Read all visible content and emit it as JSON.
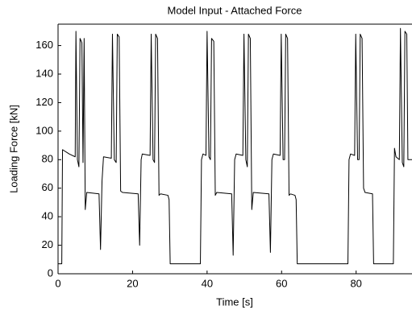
{
  "chart_data": {
    "type": "line",
    "title": "Model Input - Attached Force",
    "x_label": "Time [s]",
    "y_label": "Loading Force [kN]",
    "x": [
      0,
      1,
      1.2,
      3,
      4.6,
      4.8,
      5.2,
      5.6,
      5.9,
      6.4,
      6.7,
      7,
      7.3,
      7.7,
      11,
      11.4,
      11.8,
      12.2,
      14.3,
      14.6,
      15.1,
      15.6,
      15.9,
      16.4,
      16.8,
      17.3,
      21.5,
      21.9,
      22.3,
      22.6,
      24.7,
      25,
      25.5,
      25.9,
      26.2,
      26.7,
      27.1,
      27.5,
      29.5,
      29.8,
      30.1,
      38.2,
      38.5,
      38.9,
      39.7,
      40,
      40.5,
      40.9,
      41.2,
      41.8,
      42.2,
      42.6,
      46.6,
      47,
      47.4,
      47.8,
      49.6,
      49.9,
      50.4,
      50.8,
      51.1,
      51.6,
      52,
      52.4,
      56.6,
      57,
      57.4,
      57.8,
      59.6,
      59.9,
      60.4,
      60.8,
      61.1,
      61.6,
      62,
      62.4,
      63.6,
      63.9,
      64.2,
      77.8,
      78.1,
      78.5,
      79.6,
      79.9,
      80.4,
      80.8,
      81.1,
      81.6,
      82,
      82.4,
      84.4,
      84.7,
      90,
      90.3,
      90.7,
      91.6,
      91.9,
      92.4,
      92.8,
      93.1,
      93.6,
      93.9,
      94.4,
      95
    ],
    "values": [
      7,
      7,
      87,
      84,
      82,
      170,
      80,
      75,
      165,
      162,
      78,
      165,
      45,
      57,
      56,
      17,
      65,
      82,
      81,
      168,
      80,
      78,
      168,
      166,
      58,
      57,
      56,
      20,
      80,
      84,
      83,
      168,
      80,
      78,
      168,
      165,
      55,
      56,
      55,
      52,
      7,
      7,
      80,
      84,
      83,
      170,
      82,
      80,
      165,
      163,
      55,
      57,
      56,
      13,
      80,
      84,
      83,
      168,
      80,
      75,
      168,
      165,
      45,
      57,
      56,
      15,
      80,
      84,
      83,
      168,
      80,
      80,
      168,
      165,
      55,
      56,
      55,
      52,
      7,
      7,
      80,
      84,
      83,
      168,
      80,
      80,
      168,
      165,
      60,
      57,
      56,
      7,
      7,
      88,
      82,
      80,
      172,
      78,
      75,
      170,
      168,
      80,
      80,
      80
    ],
    "color": "#000000",
    "xlim": [
      0,
      95
    ],
    "xticks": [
      0,
      20,
      40,
      60,
      80
    ],
    "ylim": [
      0,
      175
    ],
    "yticks": [
      0,
      20,
      40,
      60,
      80,
      100,
      120,
      140,
      160
    ],
    "grid": false
  }
}
